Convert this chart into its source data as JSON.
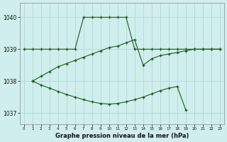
{
  "title": "Graphe pression niveau de la mer (hPa)",
  "bg_color": "#d0eeed",
  "grid_color": "#a8d4d0",
  "line_color": "#1a5c1a",
  "line1_x": [
    0,
    1,
    2,
    3,
    4,
    5,
    6,
    7,
    8,
    9,
    10,
    11,
    12,
    13,
    14,
    15,
    16,
    17,
    18,
    19,
    20,
    21,
    22,
    23
  ],
  "line1_y": [
    1039.0,
    1039.0,
    1039.0,
    1039.0,
    1039.0,
    1039.0,
    1039.0,
    1040.0,
    1040.0,
    1040.0,
    1040.0,
    1040.0,
    1040.0,
    1039.0,
    1039.0,
    1039.0,
    1039.0,
    1039.0,
    1039.0,
    1039.0,
    1039.0,
    1039.0,
    1039.0,
    1039.0
  ],
  "line2_x": [
    1,
    2,
    3,
    4,
    5,
    6,
    7,
    8,
    9,
    10,
    11,
    12,
    13,
    14,
    15,
    16,
    17,
    18,
    19,
    20,
    21,
    22,
    23
  ],
  "line2_y": [
    1038.0,
    1038.15,
    1038.3,
    1038.45,
    1038.55,
    1038.65,
    1038.75,
    1038.85,
    1038.95,
    1039.05,
    1039.1,
    1039.2,
    1039.3,
    1038.5,
    1038.7,
    1038.8,
    1038.85,
    1038.9,
    1038.95,
    1039.0,
    1039.0,
    1039.0,
    1039.0
  ],
  "line3_x": [
    1,
    2,
    3,
    4,
    5,
    6,
    7,
    8,
    9,
    10,
    11,
    12,
    13,
    14,
    15,
    16,
    17,
    18,
    19
  ],
  "line3_y": [
    1038.0,
    1037.88,
    1037.78,
    1037.68,
    1037.58,
    1037.5,
    1037.42,
    1037.35,
    1037.3,
    1037.28,
    1037.3,
    1037.35,
    1037.42,
    1037.5,
    1037.6,
    1037.7,
    1037.78,
    1037.83,
    1037.1
  ],
  "ylim": [
    1036.65,
    1040.45
  ],
  "yticks": [
    1037,
    1038,
    1039,
    1040
  ],
  "xticks": [
    0,
    1,
    2,
    3,
    4,
    5,
    6,
    7,
    8,
    9,
    10,
    11,
    12,
    13,
    14,
    15,
    16,
    17,
    18,
    19,
    20,
    21,
    22,
    23
  ],
  "figw": 3.2,
  "figh": 2.0,
  "dpi": 100
}
